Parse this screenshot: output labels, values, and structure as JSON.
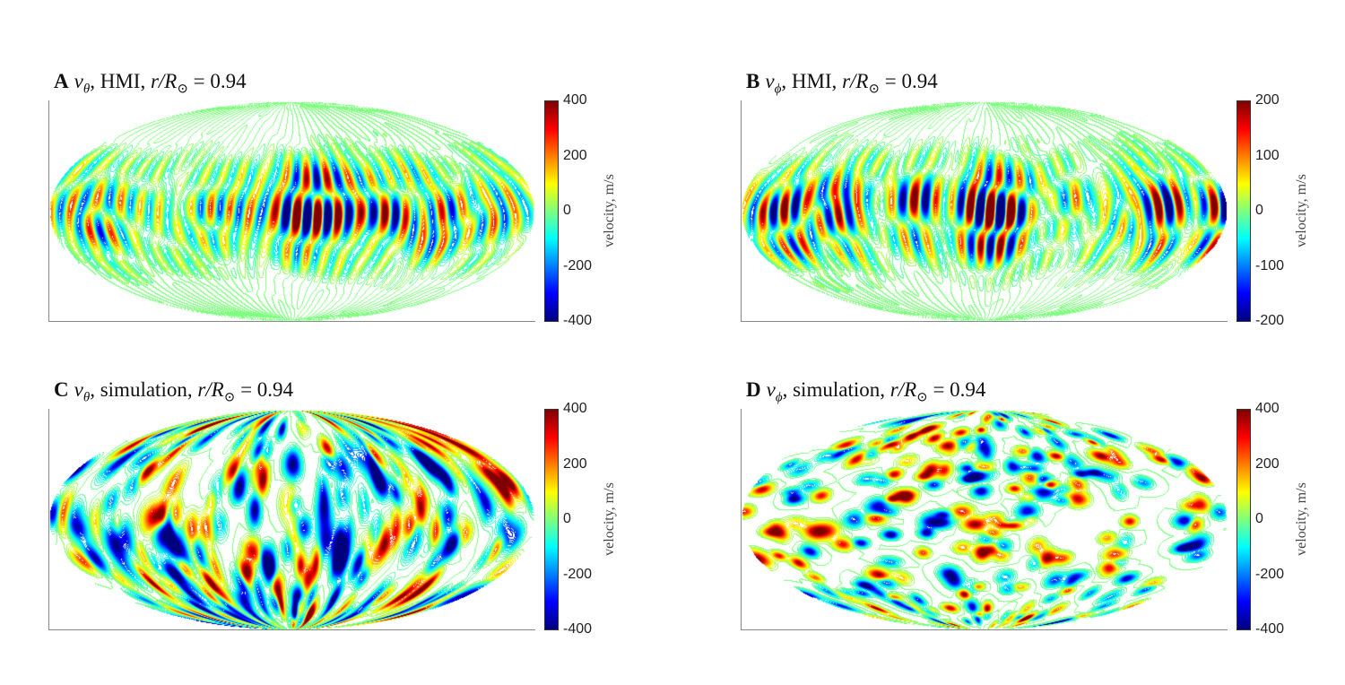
{
  "chart_data": [
    {
      "type": "heatmap",
      "projection": "mollweide",
      "panel_letter": "A",
      "variable": "v",
      "variable_sub": "θ",
      "source": ", HMI, ",
      "radius_label": "r/R",
      "radius_sub": "⊙",
      "radius_value": " = 0.94",
      "colormap": "jet",
      "colorbar": {
        "label": "velocity, m/s",
        "range": [
          -400,
          400
        ],
        "ticks": [
          "400",
          "200",
          "0",
          "-200",
          "-400"
        ]
      },
      "pattern": "hmi"
    },
    {
      "type": "heatmap",
      "projection": "mollweide",
      "panel_letter": "B",
      "variable": "v",
      "variable_sub": "ϕ",
      "source": ", HMI, ",
      "radius_label": "r/R",
      "radius_sub": "⊙",
      "radius_value": " = 0.94",
      "colormap": "jet",
      "colorbar": {
        "label": "velocity, m/s",
        "range": [
          -200,
          200
        ],
        "ticks": [
          "200",
          "100",
          "0",
          "-100",
          "-200"
        ]
      },
      "pattern": "hmi"
    },
    {
      "type": "heatmap",
      "projection": "mollweide",
      "panel_letter": "C",
      "variable": "v",
      "variable_sub": "θ",
      "source": ", simulation, ",
      "radius_label": "r/R",
      "radius_sub": "⊙",
      "radius_value": " = 0.94",
      "colormap": "jet",
      "colorbar": {
        "label": "velocity, m/s",
        "range": [
          -400,
          400
        ],
        "ticks": [
          "400",
          "200",
          "0",
          "-200",
          "-400"
        ]
      },
      "pattern": "sim-theta"
    },
    {
      "type": "heatmap",
      "projection": "mollweide",
      "panel_letter": "D",
      "variable": "v",
      "variable_sub": "ϕ",
      "source": ", simulation, ",
      "radius_label": "r/R",
      "radius_sub": "⊙",
      "radius_value": " = 0.94",
      "colormap": "jet",
      "colorbar": {
        "label": "velocity, m/s",
        "range": [
          -400,
          400
        ],
        "ticks": [
          "400",
          "200",
          "0",
          "-200",
          "-400"
        ]
      },
      "pattern": "sim-phi"
    }
  ]
}
